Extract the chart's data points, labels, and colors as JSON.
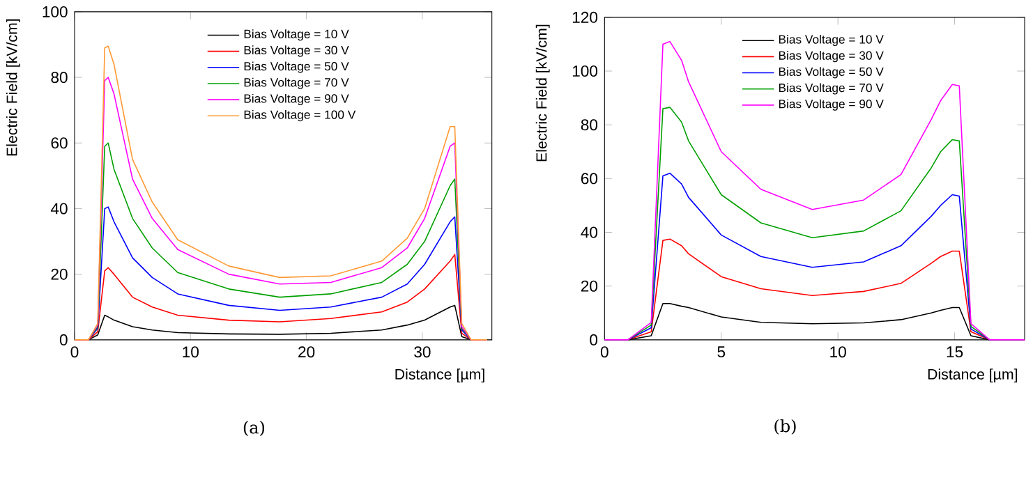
{
  "chart_data": [
    {
      "type": "line",
      "xlabel": "Distance [µm]",
      "ylabel": "Electric Field [kV/cm]",
      "xlim": [
        0,
        36
      ],
      "ylim": [
        0,
        100
      ],
      "xticks": [
        0,
        10,
        20,
        30
      ],
      "yticks": [
        0,
        20,
        40,
        60,
        80,
        100
      ],
      "legend": "top",
      "grid": false,
      "annotations": [
        "(a)"
      ],
      "x": [
        0,
        1.2,
        2.0,
        2.6,
        2.9,
        3.4,
        5.0,
        6.7,
        8.9,
        13.3,
        17.7,
        22.1,
        26.5,
        28.7,
        30.2,
        32.4,
        32.8,
        33.4,
        34.2,
        35.6
      ],
      "series": [
        {
          "name": "Bias Voltage = 10 V",
          "color": "#000000",
          "values": [
            0,
            0,
            1.5,
            7.5,
            7,
            6,
            4,
            3,
            2.2,
            1.8,
            1.7,
            2,
            3,
            4.5,
            6,
            10,
            10.5,
            1,
            0,
            0
          ]
        },
        {
          "name": "Bias Voltage = 30 V",
          "color": "#ff0000",
          "values": [
            0,
            0,
            2.5,
            21,
            22,
            20,
            13,
            10,
            7.5,
            6,
            5.5,
            6.5,
            8.5,
            11.5,
            15.5,
            24,
            26,
            2,
            0,
            0
          ]
        },
        {
          "name": "Bias Voltage = 50 V",
          "color": "#0000ff",
          "values": [
            0,
            0,
            3.5,
            40,
            40.5,
            36,
            25,
            19,
            14,
            10.5,
            9,
            10,
            13,
            17,
            23,
            36,
            37.5,
            3,
            0,
            0
          ]
        },
        {
          "name": "Bias Voltage = 70 V",
          "color": "#00a000",
          "values": [
            0,
            0,
            4,
            59,
            60,
            52,
            37,
            28,
            20.5,
            15.5,
            13,
            14,
            17.5,
            23,
            30,
            47,
            49,
            3.5,
            0,
            0
          ]
        },
        {
          "name": "Bias Voltage = 90 V",
          "color": "#ff00ff",
          "values": [
            0,
            0,
            4.5,
            79,
            80,
            75,
            49,
            37,
            27.5,
            20,
            17,
            17.5,
            22,
            28,
            37,
            59,
            60,
            4,
            0,
            0
          ]
        },
        {
          "name": "Bias Voltage = 100 V",
          "color": "#ff9933",
          "values": [
            0,
            0,
            5,
            89,
            89.5,
            84,
            55,
            42,
            30.5,
            22.5,
            19,
            19.5,
            24,
            31,
            40,
            65,
            65,
            5,
            0,
            0
          ]
        }
      ]
    },
    {
      "type": "line",
      "xlabel": "Distance [µm]",
      "ylabel": "Electric Field [kV/cm]",
      "xlim": [
        0,
        18
      ],
      "ylim": [
        0,
        120
      ],
      "xticks": [
        0,
        5,
        10,
        15
      ],
      "yticks": [
        0,
        20,
        40,
        60,
        80,
        100,
        120
      ],
      "legend": "top",
      "grid": false,
      "annotations": [
        "(b)"
      ],
      "x": [
        0,
        1.0,
        2.0,
        2.5,
        2.8,
        3.3,
        3.6,
        5.0,
        6.7,
        8.9,
        11.1,
        12.7,
        14.0,
        14.4,
        14.9,
        15.2,
        15.7,
        16.5,
        18
      ],
      "series": [
        {
          "name": "Bias Voltage = 10 V",
          "color": "#000000",
          "values": [
            0,
            0,
            1.5,
            13.5,
            13.5,
            12.5,
            12,
            8.5,
            6.5,
            6,
            6.3,
            7.5,
            10,
            11,
            12,
            12,
            1.5,
            0,
            0
          ]
        },
        {
          "name": "Bias Voltage = 30 V",
          "color": "#ff0000",
          "values": [
            0,
            0,
            3,
            37,
            37.5,
            35,
            32,
            23.5,
            19,
            16.5,
            18,
            21,
            28.5,
            31,
            33,
            33,
            3,
            0,
            0
          ]
        },
        {
          "name": "Bias Voltage = 50 V",
          "color": "#0000ff",
          "values": [
            0,
            0,
            4.5,
            61,
            62,
            58,
            53,
            39,
            31,
            27,
            29,
            35,
            46,
            50,
            54,
            53.5,
            4,
            0,
            0
          ]
        },
        {
          "name": "Bias Voltage = 70 V",
          "color": "#00a000",
          "values": [
            0,
            0,
            5.5,
            86,
            86.5,
            81,
            74,
            54,
            43.5,
            38,
            40.5,
            48,
            64,
            70,
            74.5,
            74,
            5,
            0,
            0
          ]
        },
        {
          "name": "Bias Voltage = 90 V",
          "color": "#ff00ff",
          "values": [
            0,
            0,
            6.5,
            110,
            111,
            104,
            96,
            70,
            56,
            48.5,
            52,
            61.5,
            82,
            89,
            95,
            94.5,
            6,
            0,
            0
          ]
        }
      ]
    }
  ]
}
